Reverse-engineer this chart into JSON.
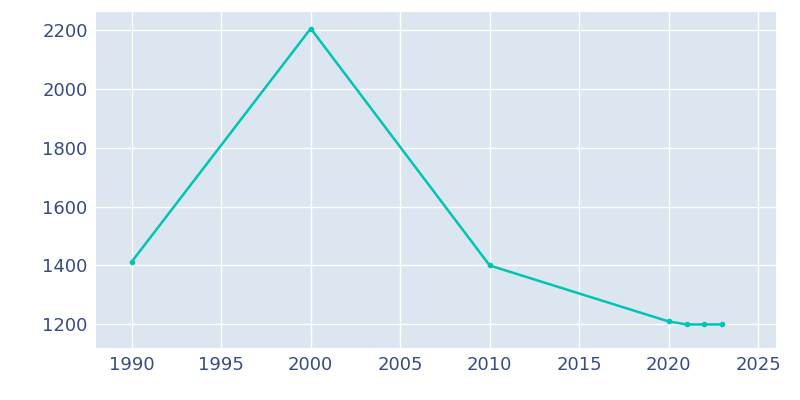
{
  "years": [
    1990,
    2000,
    2010,
    2020,
    2021,
    2022,
    2023
  ],
  "population": [
    1413,
    2204,
    1400,
    1210,
    1200,
    1200,
    1200
  ],
  "line_color": "#00c4b4",
  "marker": "o",
  "marker_size": 3,
  "background_color": "#dce6f0",
  "grid_color": "#ffffff",
  "xlim": [
    1988,
    2026
  ],
  "ylim": [
    1120,
    2260
  ],
  "xticks": [
    1990,
    1995,
    2000,
    2005,
    2010,
    2015,
    2020,
    2025
  ],
  "yticks": [
    1200,
    1400,
    1600,
    1800,
    2000,
    2200
  ],
  "tick_color": "#374c80",
  "tick_fontsize": 13
}
